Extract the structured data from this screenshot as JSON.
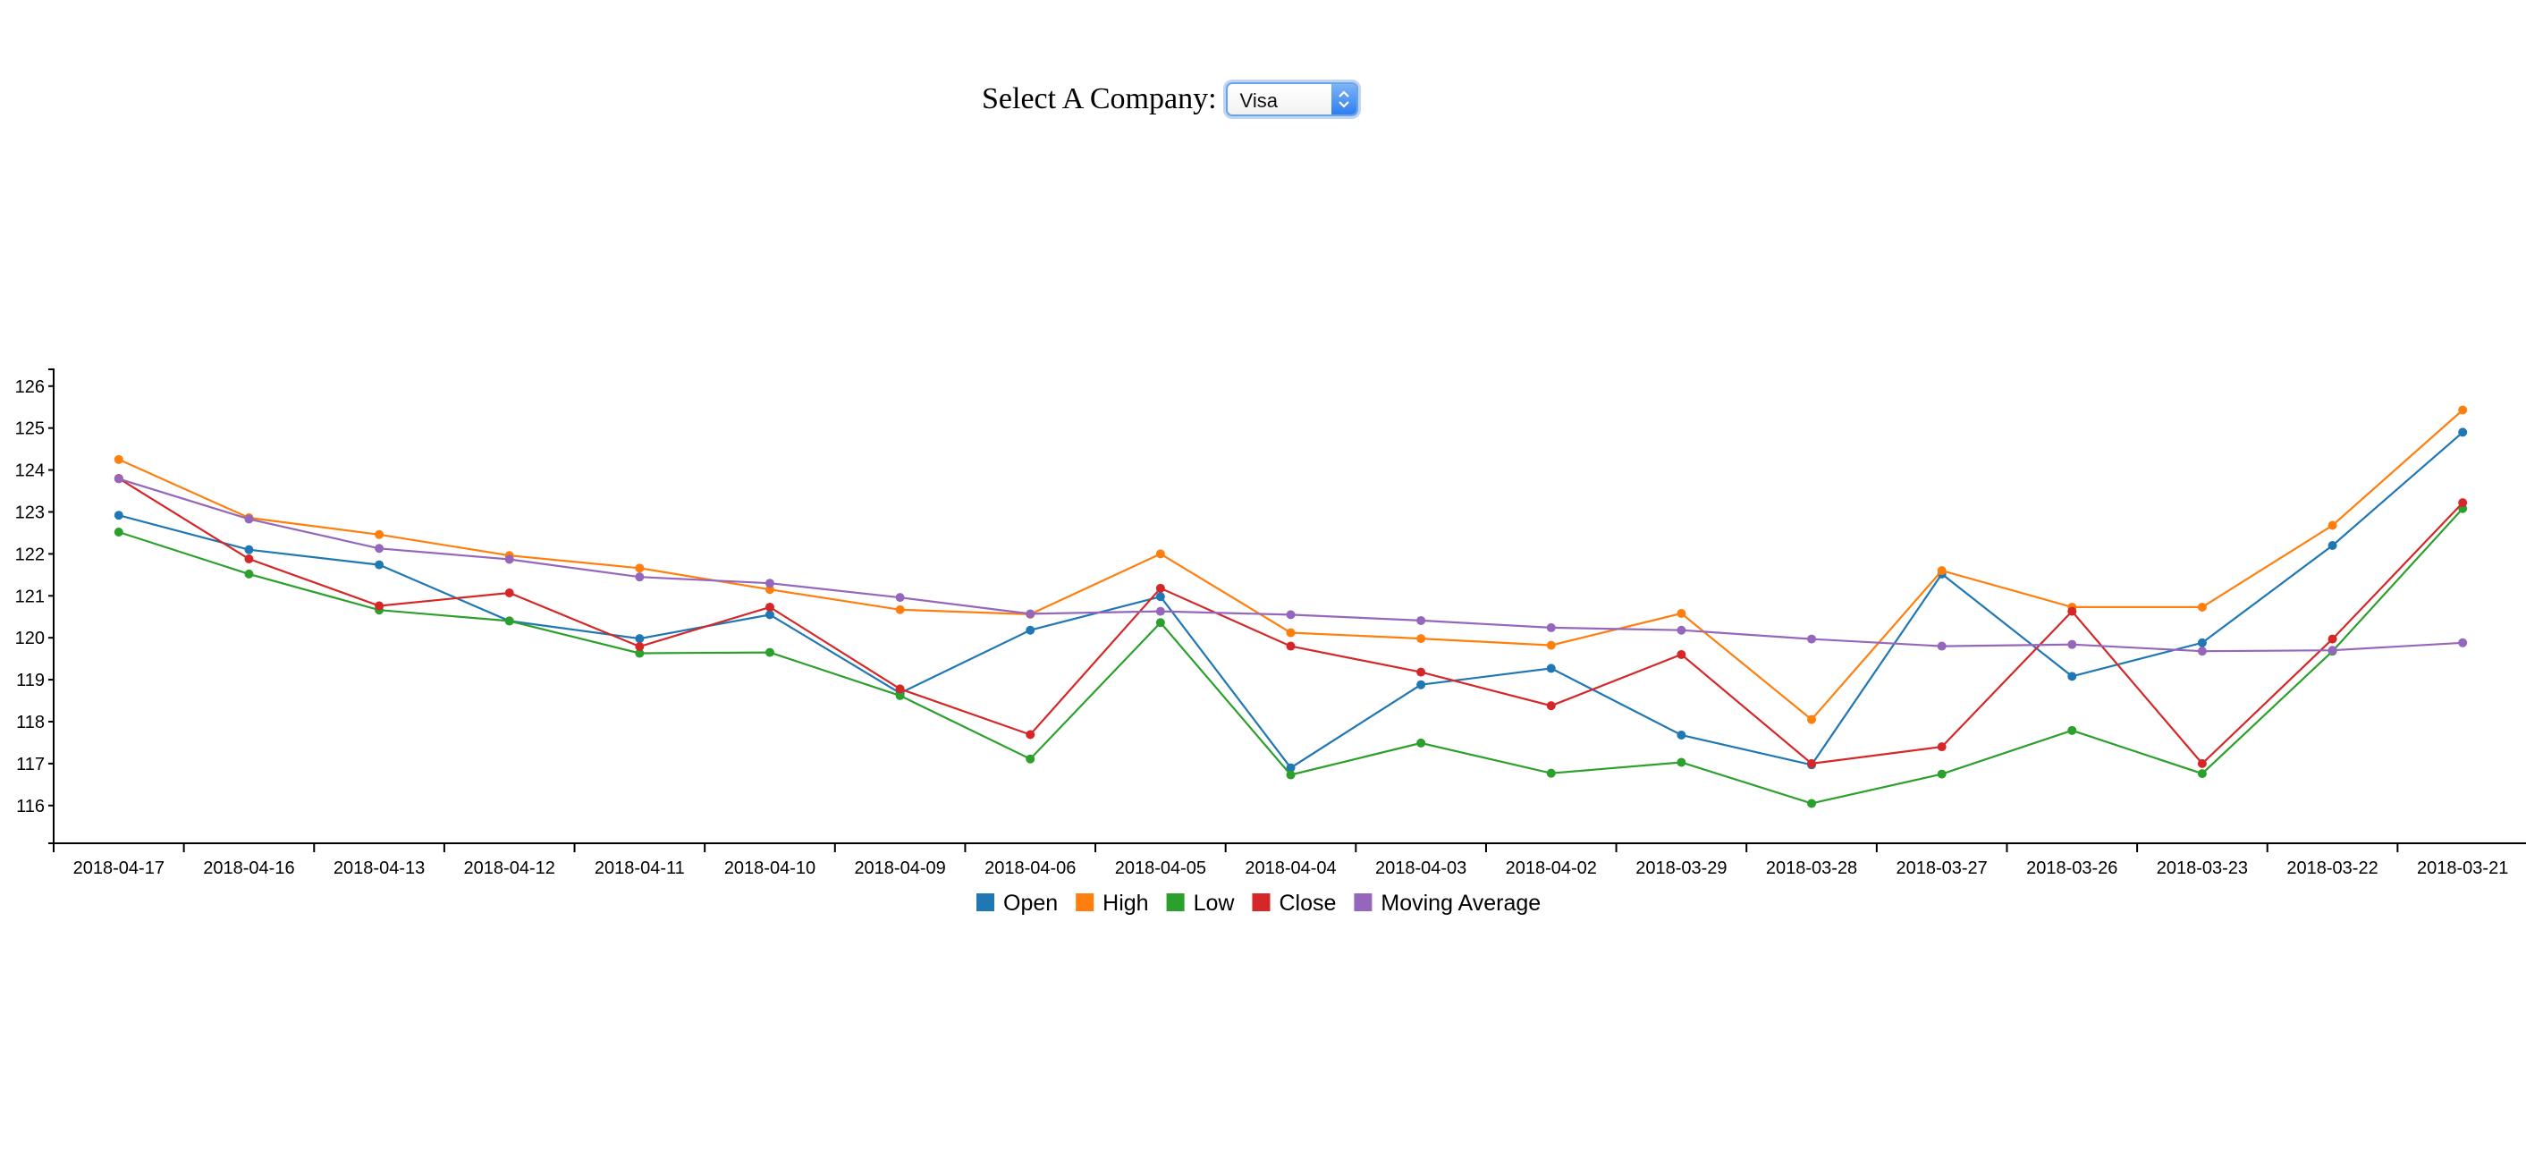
{
  "selector": {
    "label": "Select A Company:",
    "selected": "Visa",
    "arrows_icon": "up-down-chevron-icon"
  },
  "chart_data": {
    "type": "line",
    "categories": [
      "2018-04-17",
      "2018-04-16",
      "2018-04-13",
      "2018-04-12",
      "2018-04-11",
      "2018-04-10",
      "2018-04-09",
      "2018-04-06",
      "2018-04-05",
      "2018-04-04",
      "2018-04-03",
      "2018-04-02",
      "2018-03-29",
      "2018-03-28",
      "2018-03-27",
      "2018-03-26",
      "2018-03-23",
      "2018-03-22",
      "2018-03-21"
    ],
    "y_ticks": [
      116,
      117,
      118,
      119,
      120,
      121,
      122,
      123,
      124,
      125,
      126
    ],
    "ylim": [
      115.1,
      126.4
    ],
    "grid": false,
    "legend_position": "bottom-center",
    "series": [
      {
        "name": "Open",
        "color": "#1f77b4",
        "values": [
          122.92,
          122.1,
          121.74,
          120.4,
          119.98,
          120.55,
          118.68,
          120.18,
          120.98,
          116.9,
          118.88,
          119.27,
          117.68,
          116.97,
          121.52,
          119.08,
          119.88,
          122.2,
          124.9
        ]
      },
      {
        "name": "High",
        "color": "#ff7f0e",
        "values": [
          124.25,
          122.86,
          122.46,
          121.96,
          121.66,
          121.15,
          120.67,
          120.56,
          122.0,
          120.12,
          119.98,
          119.82,
          120.58,
          118.05,
          121.6,
          120.73,
          120.73,
          122.68,
          125.43
        ]
      },
      {
        "name": "Low",
        "color": "#2ca02c",
        "values": [
          122.52,
          121.52,
          120.66,
          120.4,
          119.63,
          119.65,
          118.62,
          117.11,
          120.36,
          116.73,
          117.49,
          116.77,
          117.03,
          116.05,
          116.75,
          117.79,
          116.76,
          119.68,
          123.08
        ]
      },
      {
        "name": "Close",
        "color": "#d62728",
        "values": [
          123.8,
          121.88,
          120.76,
          121.07,
          119.79,
          120.73,
          118.78,
          117.69,
          121.18,
          119.8,
          119.18,
          118.38,
          119.6,
          117.0,
          117.4,
          120.63,
          117.0,
          119.97,
          123.22
        ]
      },
      {
        "name": "Moving Average",
        "color": "#9467bd",
        "values": [
          123.79,
          122.83,
          122.13,
          121.87,
          121.45,
          121.3,
          120.96,
          120.57,
          120.63,
          120.55,
          120.41,
          120.24,
          120.18,
          119.97,
          119.8,
          119.84,
          119.68,
          119.7,
          119.88
        ]
      }
    ]
  }
}
